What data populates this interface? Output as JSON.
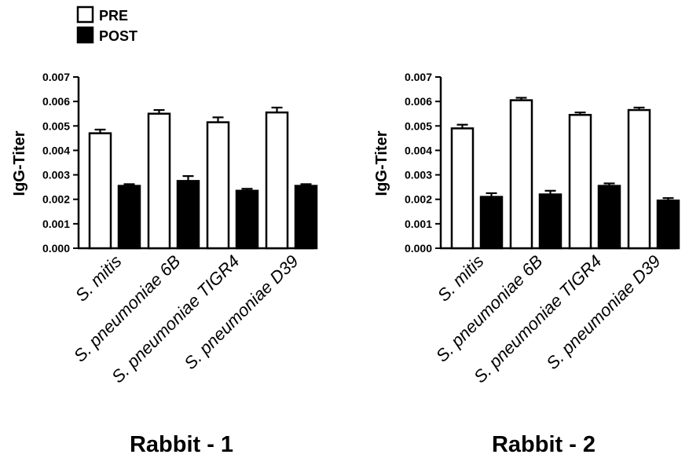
{
  "legend": {
    "items": [
      {
        "label": "PRE",
        "color": "#ffffff"
      },
      {
        "label": "POST",
        "color": "#000000"
      }
    ]
  },
  "chart_data": [
    {
      "type": "bar",
      "title": "Rabbit - 1",
      "ylabel": "IgG-Titer",
      "xlabel": "",
      "ylim": [
        0,
        0.007
      ],
      "yticks": [
        "0.000",
        "0.001",
        "0.002",
        "0.003",
        "0.004",
        "0.005",
        "0.006",
        "0.007"
      ],
      "categories": [
        "S. mitis",
        "S. pneumoniae 6B",
        "S. pneumoniae TIGR4",
        "S. pneumoniae D39"
      ],
      "series": [
        {
          "name": "PRE",
          "color": "#ffffff",
          "values": [
            0.0047,
            0.0055,
            0.00515,
            0.00555
          ],
          "errors": [
            0.00015,
            0.00015,
            0.0002,
            0.0002
          ]
        },
        {
          "name": "POST",
          "color": "#000000",
          "values": [
            0.00255,
            0.00275,
            0.00235,
            0.00255
          ],
          "errors": [
            7e-05,
            0.0002,
            8e-05,
            7e-05
          ]
        }
      ],
      "legend": "top-left",
      "grid": false
    },
    {
      "type": "bar",
      "title": "Rabbit - 2",
      "ylabel": "IgG-Titer",
      "xlabel": "",
      "ylim": [
        0,
        0.007
      ],
      "yticks": [
        "0.000",
        "0.001",
        "0.002",
        "0.003",
        "0.004",
        "0.005",
        "0.006",
        "0.007"
      ],
      "categories": [
        "S. mitis",
        "S. pneumoniae 6B",
        "S. pneumoniae TIGR4",
        "S. pneumoniae D39"
      ],
      "series": [
        {
          "name": "PRE",
          "color": "#ffffff",
          "values": [
            0.0049,
            0.00605,
            0.00545,
            0.00565
          ],
          "errors": [
            0.00015,
            0.0001,
            0.0001,
            0.0001
          ]
        },
        {
          "name": "POST",
          "color": "#000000",
          "values": [
            0.0021,
            0.0022,
            0.00255,
            0.00195
          ],
          "errors": [
            0.00015,
            0.00015,
            0.0001,
            0.0001
          ]
        }
      ],
      "legend": "none",
      "grid": false
    }
  ]
}
